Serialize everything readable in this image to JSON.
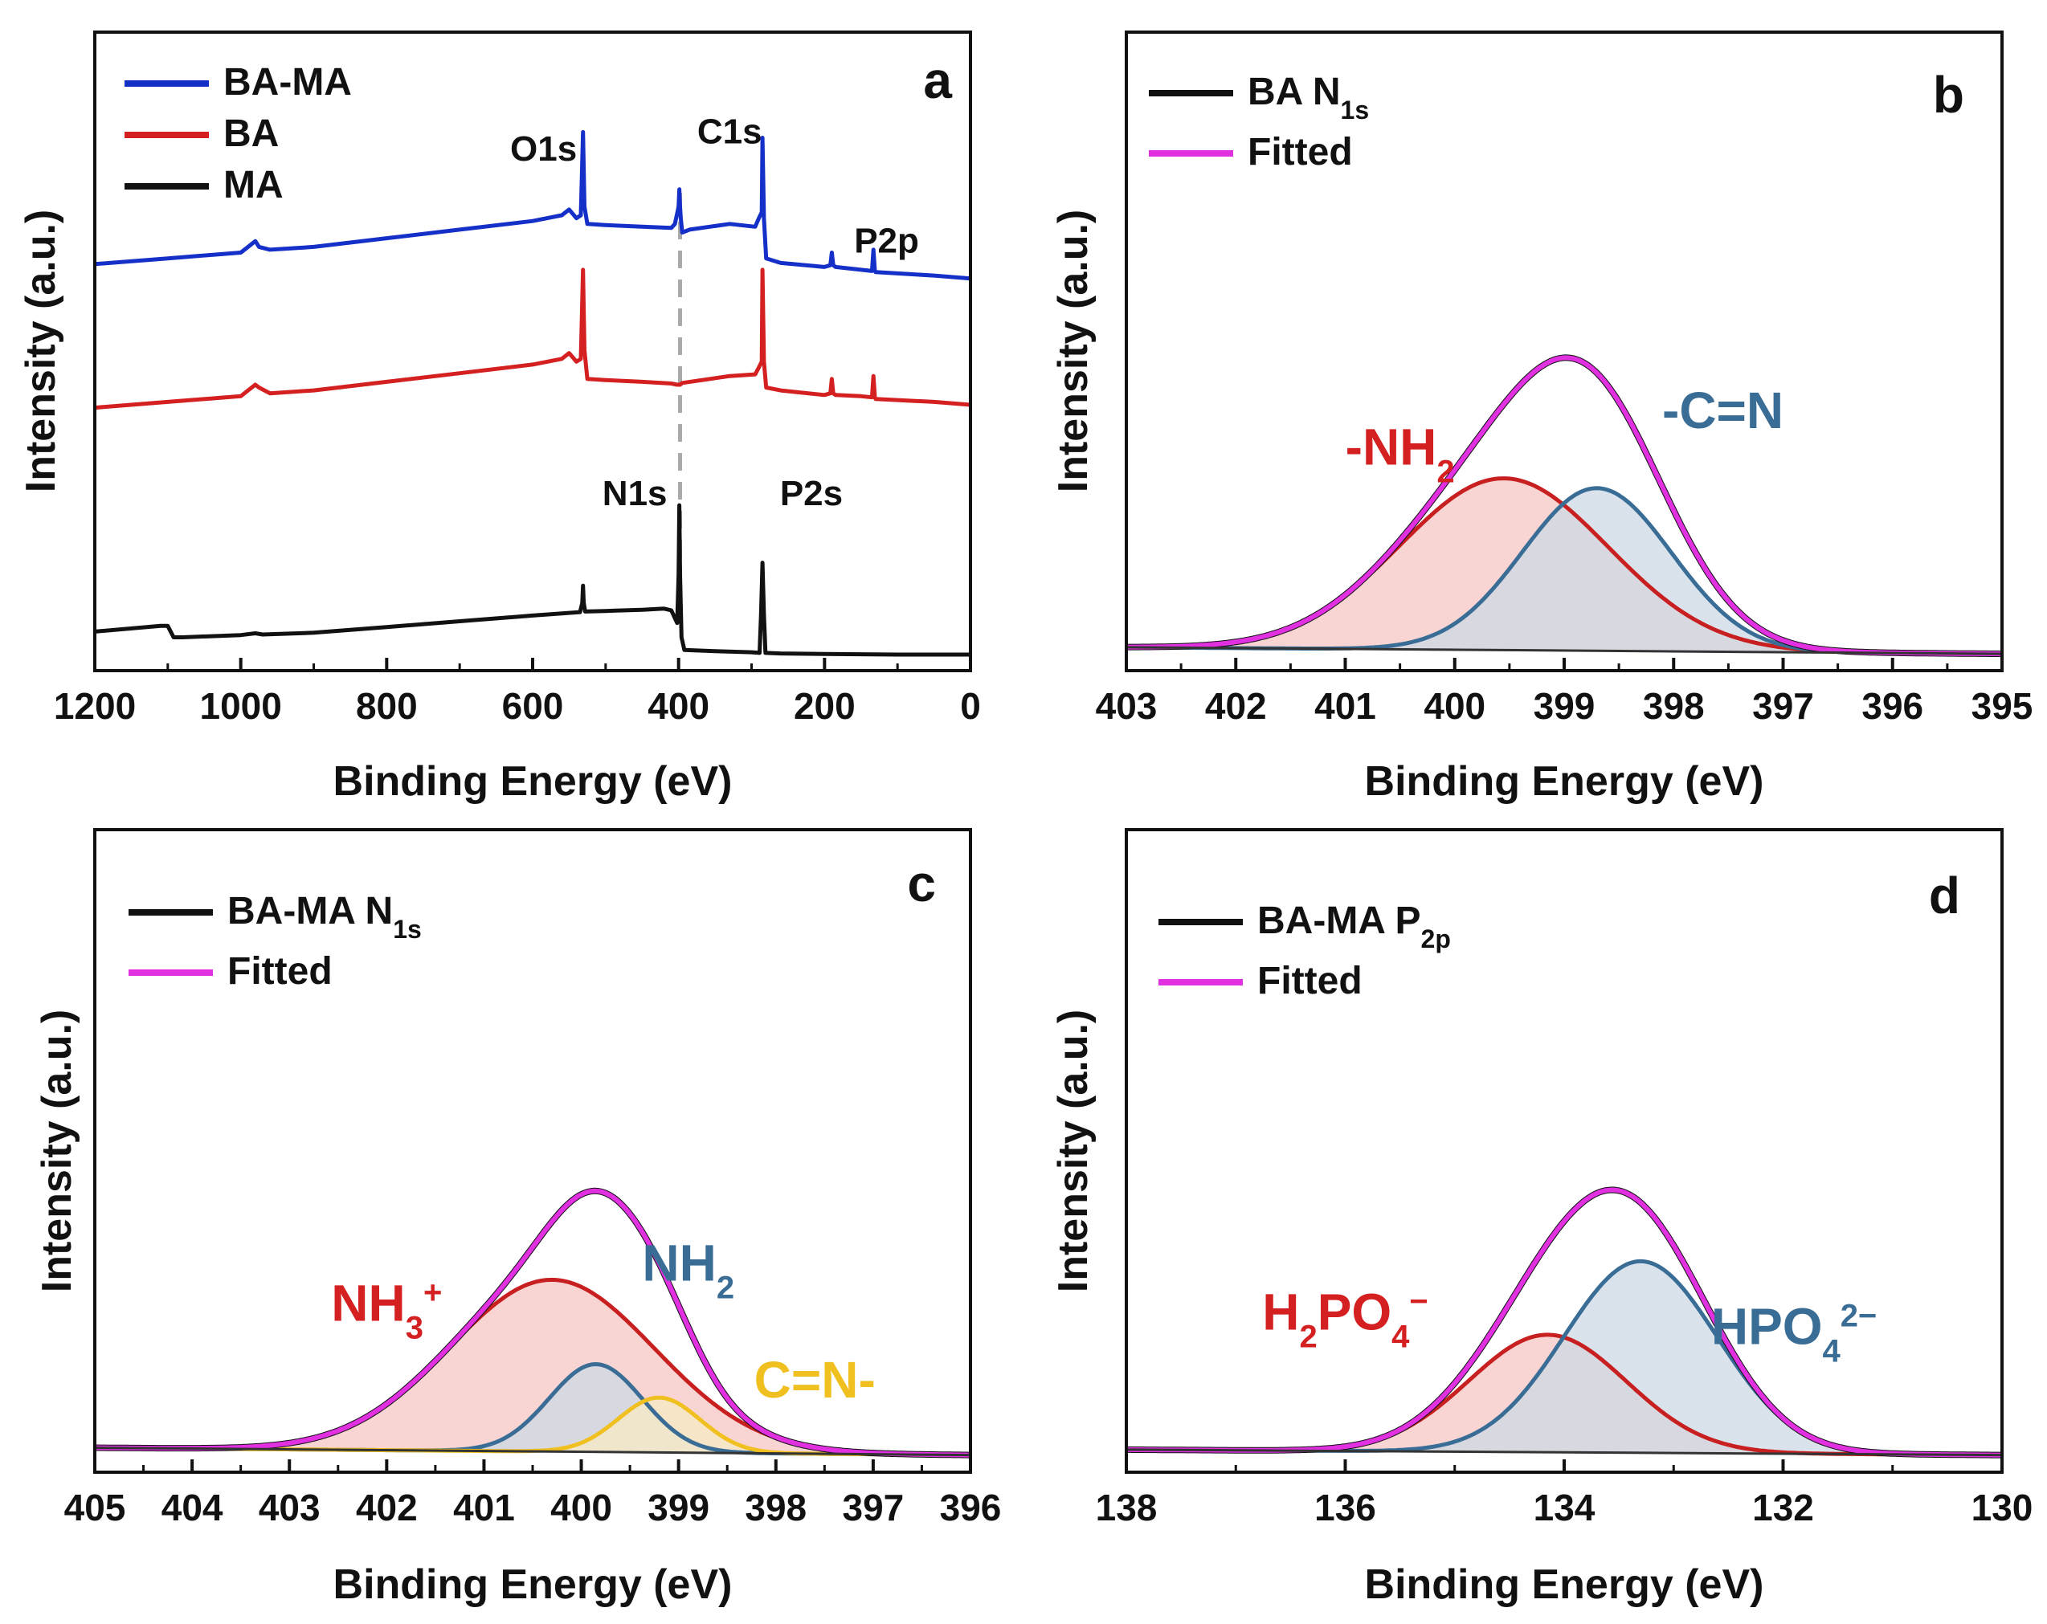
{
  "figure": {
    "y_axis_title": "Intensity (a.u.)",
    "x_axis_title": "Binding Energy (eV)"
  },
  "chart_data": [
    {
      "panel": "a",
      "type": "line",
      "title": "",
      "xlabel": "Binding Energy (eV)",
      "ylabel": "Intensity (a.u.)",
      "xlim": [
        1200,
        0
      ],
      "ylim": [
        0,
        100
      ],
      "xticks": [
        1200,
        1000,
        800,
        600,
        400,
        200,
        0
      ],
      "yticks_shown": false,
      "legend_position": "top-left",
      "reference_line": {
        "x": 398,
        "style": "dashed",
        "color": "#aaaaaa"
      },
      "series": [
        {
          "name": "BA-MA",
          "color": "#1530c8",
          "points": [
            [
              1200,
              68
            ],
            [
              1100,
              69
            ],
            [
              1000,
              70
            ],
            [
              990,
              71
            ],
            [
              980,
              72
            ],
            [
              975,
              71
            ],
            [
              960,
              70.5
            ],
            [
              900,
              71
            ],
            [
              800,
              72.5
            ],
            [
              700,
              74
            ],
            [
              600,
              75.5
            ],
            [
              560,
              76.5
            ],
            [
              550,
              77.5
            ],
            [
              540,
              76
            ],
            [
              534,
              76.5
            ],
            [
              531,
              91
            ],
            [
              529,
              78
            ],
            [
              525,
              75
            ],
            [
              500,
              74.8
            ],
            [
              450,
              74.5
            ],
            [
              410,
              74.3
            ],
            [
              405,
              75
            ],
            [
              400,
              78
            ],
            [
              399,
              81
            ],
            [
              398,
              78
            ],
            [
              397,
              76
            ],
            [
              395,
              73.5
            ],
            [
              385,
              74
            ],
            [
              330,
              75
            ],
            [
              295,
              74.5
            ],
            [
              290,
              76
            ],
            [
              286,
              77
            ],
            [
              285,
              90
            ],
            [
              283,
              76
            ],
            [
              280,
              69
            ],
            [
              260,
              68.2
            ],
            [
              200,
              67.5
            ],
            [
              192,
              67.8
            ],
            [
              190,
              70
            ],
            [
              188,
              67.8
            ],
            [
              185,
              67.5
            ],
            [
              150,
              67
            ],
            [
              135,
              66.8
            ],
            [
              133,
              70.5
            ],
            [
              131,
              66.8
            ],
            [
              130,
              66.6
            ],
            [
              50,
              66
            ],
            [
              0,
              65.5
            ]
          ]
        },
        {
          "name": "BA",
          "color": "#d42020",
          "points": [
            [
              1200,
              43
            ],
            [
              1100,
              44
            ],
            [
              1000,
              45
            ],
            [
              990,
              46
            ],
            [
              980,
              47
            ],
            [
              975,
              46.5
            ],
            [
              960,
              45.5
            ],
            [
              900,
              46
            ],
            [
              800,
              47.5
            ],
            [
              700,
              49
            ],
            [
              600,
              50.5
            ],
            [
              560,
              51.5
            ],
            [
              550,
              52.5
            ],
            [
              540,
              51
            ],
            [
              534,
              51.5
            ],
            [
              531,
              67
            ],
            [
              529,
              53
            ],
            [
              525,
              48
            ],
            [
              500,
              47.8
            ],
            [
              450,
              47.5
            ],
            [
              410,
              47.2
            ],
            [
              402,
              47
            ],
            [
              398,
              47
            ],
            [
              395,
              47.3
            ],
            [
              330,
              48.5
            ],
            [
              295,
              48.8
            ],
            [
              290,
              50
            ],
            [
              286,
              51
            ],
            [
              285,
              67
            ],
            [
              283,
              51
            ],
            [
              280,
              46.5
            ],
            [
              260,
              46
            ],
            [
              200,
              45.2
            ],
            [
              192,
              45.5
            ],
            [
              190,
              48
            ],
            [
              188,
              45.5
            ],
            [
              185,
              45.2
            ],
            [
              150,
              45
            ],
            [
              135,
              44.8
            ],
            [
              133,
              48.5
            ],
            [
              131,
              44.8
            ],
            [
              130,
              44.5
            ],
            [
              50,
              44
            ],
            [
              0,
              43.5
            ]
          ]
        },
        {
          "name": "MA",
          "color": "#111111",
          "points": [
            [
              1200,
              4
            ],
            [
              1110,
              5
            ],
            [
              1100,
              5
            ],
            [
              1092,
              3
            ],
            [
              1080,
              3
            ],
            [
              1000,
              3.4
            ],
            [
              980,
              3.7
            ],
            [
              970,
              3.5
            ],
            [
              900,
              3.8
            ],
            [
              800,
              4.8
            ],
            [
              700,
              5.8
            ],
            [
              600,
              6.8
            ],
            [
              535,
              7.4
            ],
            [
              532,
              9
            ],
            [
              531,
              12
            ],
            [
              530,
              9
            ],
            [
              528,
              7.5
            ],
            [
              500,
              7.6
            ],
            [
              450,
              7.8
            ],
            [
              420,
              8
            ],
            [
              410,
              7.7
            ],
            [
              402,
              5.5
            ],
            [
              400,
              14
            ],
            [
              399,
              26
            ],
            [
              398,
              14
            ],
            [
              396,
              3
            ],
            [
              392,
              0.8
            ],
            [
              350,
              0.6
            ],
            [
              300,
              0.4
            ],
            [
              289,
              0.3
            ],
            [
              287,
              7
            ],
            [
              285,
              16
            ],
            [
              283,
              7
            ],
            [
              281,
              0.3
            ],
            [
              260,
              0.2
            ],
            [
              200,
              0.1
            ],
            [
              100,
              0
            ],
            [
              0,
              0
            ]
          ]
        }
      ],
      "annotations": [
        {
          "text": "O1s",
          "x": 585,
          "y": 86
        },
        {
          "text": "C1s",
          "x": 330,
          "y": 89
        },
        {
          "text": "P2p",
          "x": 115,
          "y": 70
        },
        {
          "text": "N1s",
          "x": 460,
          "y": 26
        },
        {
          "text": "P2s",
          "x": 218,
          "y": 26
        }
      ]
    },
    {
      "panel": "b",
      "type": "area",
      "title": "",
      "xlabel": "Binding Energy (eV)",
      "ylabel": "Intensity (a.u.)",
      "xlim": [
        403,
        395
      ],
      "ylim": [
        0,
        100
      ],
      "xticks": [
        403,
        402,
        401,
        400,
        399,
        398,
        397,
        396,
        395
      ],
      "yticks_shown": false,
      "legend_position": "top-left",
      "baseline": {
        "x0": 403,
        "y0": 2.0,
        "x1": 395,
        "y1": 0.2
      },
      "components": [
        {
          "name": "-NH2",
          "center": 399.55,
          "height": 47,
          "width": 0.95,
          "fill": "#f5c6c4",
          "line": "#c82020"
        },
        {
          "name": "-C=N",
          "center": 398.7,
          "height": 44.5,
          "width": 0.68,
          "fill": "#cdd9e6",
          "line": "#3a6d96"
        }
      ],
      "labels": [
        {
          "text": "-NH",
          "sub": "2",
          "sup": "",
          "color": "#d42020",
          "x": 400.5,
          "y": 52
        },
        {
          "text": "-C=N",
          "sub": "",
          "sup": "",
          "color": "#3a6d96",
          "x": 397.55,
          "y": 62
        }
      ]
    },
    {
      "panel": "c",
      "type": "area",
      "title": "",
      "xlabel": "Binding Energy (eV)",
      "ylabel": "Intensity (a.u.)",
      "xlim": [
        405,
        396
      ],
      "ylim": [
        0,
        100
      ],
      "xticks": [
        405,
        404,
        403,
        402,
        401,
        400,
        399,
        398,
        397,
        396
      ],
      "yticks_shown": false,
      "legend_position": "top-left",
      "baseline": {
        "x0": 405,
        "y0": 2.3,
        "x1": 396,
        "y1": 0.3
      },
      "components": [
        {
          "name": "NH3+",
          "center": 400.3,
          "height": 47,
          "width": 1.05,
          "fill": "#f5c6c4",
          "line": "#c82020"
        },
        {
          "name": "NH2",
          "center": 399.85,
          "height": 24,
          "width": 0.48,
          "fill": "#cdd9e6",
          "line": "#3a6d96"
        },
        {
          "name": "C=N-",
          "center": 399.2,
          "height": 15,
          "width": 0.42,
          "fill": "#f7ebc4",
          "line": "#f0c020"
        }
      ],
      "labels": [
        {
          "text": "NH",
          "sub": "3",
          "sup": "+",
          "color": "#d42020",
          "x": 402.0,
          "y": 37
        },
        {
          "text": "NH",
          "sub": "2",
          "sup": "",
          "color": "#3a6d96",
          "x": 398.9,
          "y": 48
        },
        {
          "text": "C=N-",
          "sub": "",
          "sup": "",
          "color": "#f0c020",
          "x": 397.6,
          "y": 16
        }
      ]
    },
    {
      "panel": "d",
      "type": "area",
      "title": "",
      "xlabel": "Binding Energy (eV)",
      "ylabel": "Intensity (a.u.)",
      "xlim": [
        138,
        130
      ],
      "ylim": [
        0,
        100
      ],
      "xticks": [
        138,
        136,
        134,
        132,
        130
      ],
      "yticks_shown": false,
      "legend_position": "top-left",
      "baseline": {
        "x0": 138,
        "y0": 1.8,
        "x1": 130,
        "y1": 0.3
      },
      "components": [
        {
          "name": "H2PO4-",
          "center": 134.15,
          "height": 32.5,
          "width": 0.72,
          "fill": "#f5c6c4",
          "line": "#c82020"
        },
        {
          "name": "HPO4 2-",
          "center": 133.3,
          "height": 53,
          "width": 0.7,
          "fill": "#cdd9e6",
          "line": "#3a6d96"
        }
      ],
      "labels": [
        {
          "text": "H",
          "sub": "2",
          "sup": "",
          "tail": "PO",
          "sub2": "4",
          "sup2": "−",
          "color": "#d42020",
          "x": 136.0,
          "y": 35
        },
        {
          "text": "HPO",
          "sub": "4",
          "sup": "2−",
          "tail": "",
          "sub2": "",
          "sup2": "",
          "color": "#3a6d96",
          "x": 131.9,
          "y": 31
        }
      ]
    }
  ],
  "legends": {
    "a": [
      {
        "label": "BA-MA",
        "sub": "",
        "color": "#1530c8"
      },
      {
        "label": "BA",
        "sub": "",
        "color": "#d42020"
      },
      {
        "label": "MA",
        "sub": "",
        "color": "#111111"
      }
    ],
    "b": [
      {
        "label": "BA N",
        "sub": "1s",
        "color": "#111111"
      },
      {
        "label": "Fitted",
        "sub": "",
        "color": "#e030e0"
      }
    ],
    "c": [
      {
        "label": "BA-MA N",
        "sub": "1s",
        "color": "#111111"
      },
      {
        "label": "Fitted",
        "sub": "",
        "color": "#e030e0"
      }
    ],
    "d": [
      {
        "label": "BA-MA P",
        "sub": "2p",
        "color": "#111111"
      },
      {
        "label": "Fitted",
        "sub": "",
        "color": "#e030e0"
      }
    ]
  },
  "fitted_color": "#e030e0",
  "panel_letters": {
    "a": "a",
    "b": "b",
    "c": "c",
    "d": "d"
  }
}
